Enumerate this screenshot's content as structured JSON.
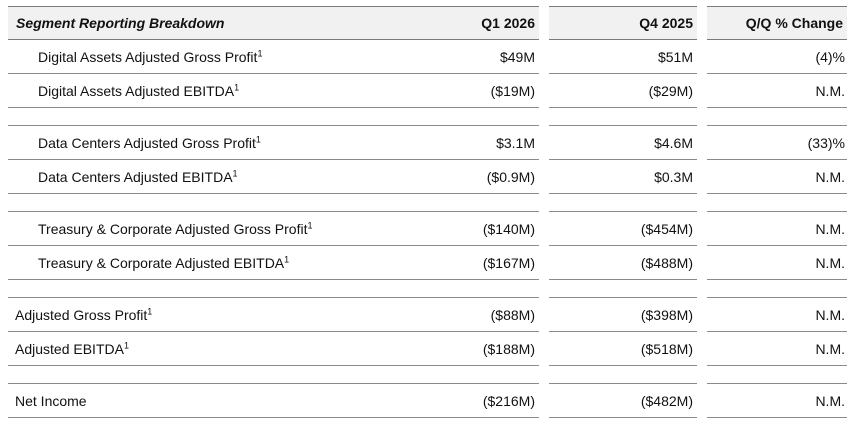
{
  "table": {
    "title": "Segment Reporting Breakdown",
    "columns": [
      "Q1 2026",
      "Q4 2025",
      "Q/Q % Change"
    ],
    "footnote_marker": "1",
    "rows": [
      {
        "label": "Digital Assets Adjusted Gross Profit",
        "q1": "$49M",
        "q4": "$51M",
        "change": "(4)%"
      },
      {
        "label": "Digital Assets Adjusted EBITDA",
        "q1": "($19M)",
        "q4": "($29M)",
        "change": "N.M."
      },
      {
        "label": "Data Centers Adjusted Gross Profit",
        "q1": "$3.1M",
        "q4": "$4.6M",
        "change": "(33)%"
      },
      {
        "label": "Data Centers Adjusted EBITDA",
        "q1": "($0.9M)",
        "q4": "$0.3M",
        "change": "N.M."
      },
      {
        "label": "Treasury & Corporate Adjusted Gross Profit",
        "q1": "($140M)",
        "q4": "($454M)",
        "change": "N.M."
      },
      {
        "label": "Treasury & Corporate Adjusted EBITDA",
        "q1": "($167M)",
        "q4": "($488M)",
        "change": "N.M."
      },
      {
        "label": "Adjusted Gross Profit",
        "q1": "($88M)",
        "q4": "($398M)",
        "change": "N.M."
      },
      {
        "label": "Adjusted EBITDA",
        "q1": "($188M)",
        "q4": "($518M)",
        "change": "N.M."
      },
      {
        "label": "Net Income",
        "q1": "($216M)",
        "q4": "($482M)",
        "change": "N.M."
      }
    ]
  }
}
